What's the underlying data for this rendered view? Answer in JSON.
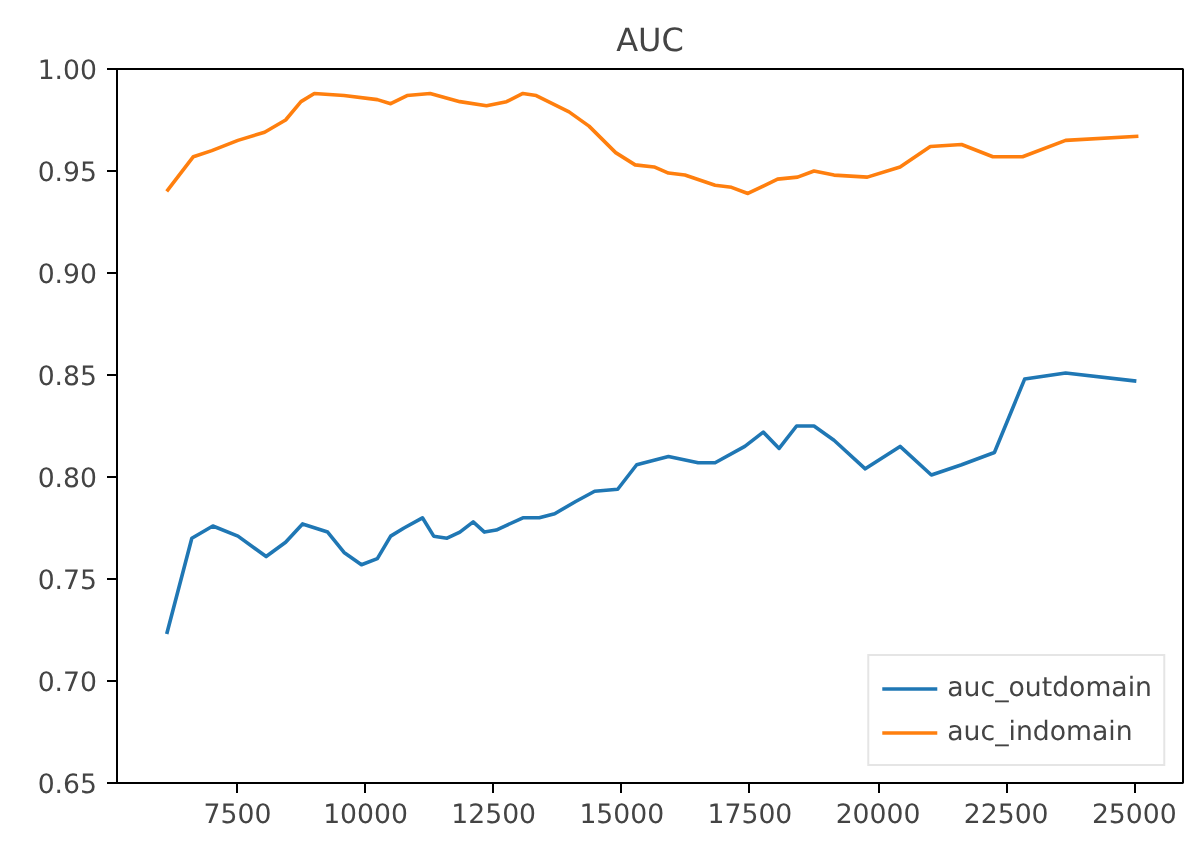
{
  "chart_data": {
    "type": "line",
    "title": "AUC",
    "xlim": [
      5150,
      25950
    ],
    "ylim": [
      0.65,
      1.0
    ],
    "xticks": [
      7500,
      10000,
      12500,
      15000,
      17500,
      20000,
      22500,
      25000
    ],
    "yticks": [
      {
        "value": 0.65,
        "label": "0.65"
      },
      {
        "value": 0.7,
        "label": "0.70"
      },
      {
        "value": 0.75,
        "label": "0.75"
      },
      {
        "value": 0.8,
        "label": "0.80"
      },
      {
        "value": 0.85,
        "label": "0.85"
      },
      {
        "value": 0.9,
        "label": "0.90"
      },
      {
        "value": 0.95,
        "label": "0.95"
      },
      {
        "value": 1.0,
        "label": "1.00"
      }
    ],
    "grid": false,
    "legend": "bottom right",
    "line_style": "solid",
    "marker": "none",
    "series": [
      {
        "name": "auc_outdomain",
        "color": "#1f77b4",
        "x": [
          6120,
          6610,
          7020,
          7510,
          8060,
          8440,
          8770,
          9260,
          9580,
          9920,
          10230,
          10490,
          10750,
          11110,
          11330,
          11590,
          11840,
          12100,
          12320,
          12550,
          13070,
          13390,
          13690,
          14100,
          14470,
          14920,
          15290,
          15910,
          16490,
          16820,
          17400,
          17760,
          18070,
          18410,
          18750,
          19140,
          19750,
          20430,
          21040,
          21630,
          22270,
          22860,
          23660,
          25040
        ],
        "values": [
          0.723,
          0.77,
          0.776,
          0.771,
          0.761,
          0.768,
          0.777,
          0.773,
          0.763,
          0.757,
          0.76,
          0.771,
          0.775,
          0.78,
          0.771,
          0.77,
          0.773,
          0.778,
          0.773,
          0.774,
          0.78,
          0.78,
          0.782,
          0.788,
          0.793,
          0.794,
          0.806,
          0.81,
          0.807,
          0.807,
          0.815,
          0.822,
          0.814,
          0.825,
          0.825,
          0.818,
          0.804,
          0.815,
          0.801,
          0.806,
          0.812,
          0.848,
          0.851,
          0.847
        ]
      },
      {
        "name": "auc_indomain",
        "color": "#ff7f0e",
        "x": [
          6120,
          6640,
          7000,
          7510,
          8030,
          8440,
          8740,
          9000,
          9580,
          10230,
          10490,
          10810,
          11260,
          11840,
          12360,
          12750,
          13070,
          13330,
          13970,
          14360,
          14880,
          15260,
          15630,
          15910,
          16230,
          16820,
          17140,
          17460,
          18040,
          18430,
          18750,
          19140,
          19790,
          20430,
          21020,
          21630,
          22240,
          22820,
          23660,
          25080
        ],
        "values": [
          0.94,
          0.957,
          0.96,
          0.965,
          0.969,
          0.975,
          0.984,
          0.988,
          0.987,
          0.985,
          0.983,
          0.987,
          0.988,
          0.984,
          0.982,
          0.984,
          0.988,
          0.987,
          0.979,
          0.972,
          0.959,
          0.953,
          0.952,
          0.949,
          0.948,
          0.943,
          0.942,
          0.939,
          0.946,
          0.947,
          0.95,
          0.948,
          0.947,
          0.952,
          0.962,
          0.963,
          0.957,
          0.957,
          0.965,
          0.967
        ]
      }
    ]
  }
}
